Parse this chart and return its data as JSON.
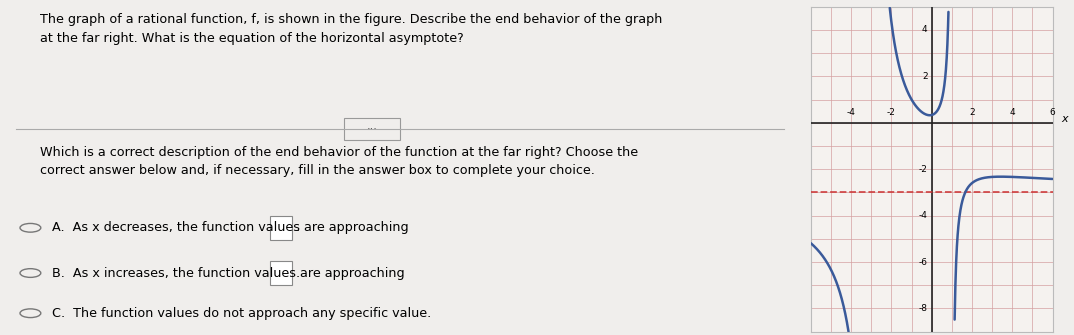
{
  "title_text": "The graph of a rational function, f, is shown in the figure. Describe the end behavior of the graph\nat the far right. What is the equation of the horizontal asymptote?",
  "question_text": "Which is a correct description of the end behavior of the function at the far right? Choose the\ncorrect answer below and, if necessary, fill in the answer box to complete your choice.",
  "choice_A": "A.  As x decreases, the function values are approaching",
  "choice_B": "B.  As x increases, the function values are approaching",
  "choice_C": "C.  The function values do not approach any specific value.",
  "bg_color": "#f0eeec",
  "graph_bg": "#f5f2ef",
  "graph_line_color": "#3a5a9a",
  "asymptote_color": "#cc3333",
  "xmin": -6,
  "xmax": 6,
  "ymin": -9,
  "ymax": 5,
  "horizontal_asymptote": -3,
  "vertical_asymptotes": [
    -3,
    1
  ],
  "tick_vals_x": [
    -4,
    -2,
    2,
    4,
    6
  ],
  "tick_vals_y": [
    -8,
    -6,
    -4,
    -2,
    2,
    4
  ]
}
